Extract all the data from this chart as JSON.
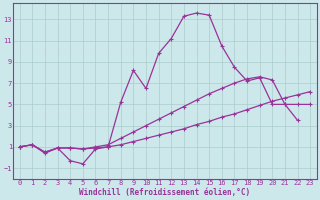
{
  "xlabel": "Windchill (Refroidissement éolien,°C)",
  "background_color": "#cce8eb",
  "line_color": "#993399",
  "xlim": [
    -0.5,
    23.5
  ],
  "ylim": [
    -2,
    14.5
  ],
  "xticks": [
    0,
    1,
    2,
    3,
    4,
    5,
    6,
    7,
    8,
    9,
    10,
    11,
    12,
    13,
    14,
    15,
    16,
    17,
    18,
    19,
    20,
    21,
    22,
    23
  ],
  "yticks": [
    -1,
    1,
    3,
    5,
    7,
    9,
    11,
    13
  ],
  "line1_x": [
    0,
    1,
    2,
    3,
    4,
    5,
    6,
    7,
    8,
    9,
    10,
    11,
    12,
    13,
    14,
    15,
    16,
    17,
    18,
    19,
    20,
    21,
    22
  ],
  "line1_y": [
    1.0,
    1.2,
    0.4,
    0.9,
    -0.3,
    -0.6,
    0.8,
    1.0,
    5.2,
    8.2,
    6.5,
    9.8,
    11.2,
    13.3,
    13.6,
    13.4,
    10.5,
    8.5,
    7.2,
    7.5,
    5.0,
    5.0,
    3.5
  ],
  "line2_x": [
    0,
    1,
    2,
    3,
    4,
    5,
    6,
    7,
    8,
    9,
    10,
    11,
    12,
    13,
    14,
    15,
    16,
    17,
    18,
    19,
    20,
    21,
    22,
    23
  ],
  "line2_y": [
    1.0,
    1.2,
    0.5,
    0.9,
    0.9,
    0.8,
    0.9,
    1.0,
    1.2,
    1.5,
    1.8,
    2.1,
    2.4,
    2.7,
    3.1,
    3.4,
    3.8,
    4.1,
    4.5,
    4.9,
    5.3,
    5.6,
    5.9,
    6.2
  ],
  "line3_x": [
    0,
    1,
    2,
    3,
    4,
    5,
    6,
    7,
    8,
    9,
    10,
    11,
    12,
    13,
    14,
    15,
    16,
    17,
    18,
    19,
    20,
    21,
    22,
    23
  ],
  "line3_y": [
    1.0,
    1.2,
    0.5,
    0.9,
    0.9,
    0.8,
    1.0,
    1.2,
    1.8,
    2.4,
    3.0,
    3.6,
    4.2,
    4.8,
    5.4,
    6.0,
    6.5,
    7.0,
    7.4,
    7.6,
    7.3,
    5.0,
    5.0,
    5.0
  ],
  "grid_color": "#aacccc",
  "font_color": "#993399",
  "tick_fontsize": 5.0,
  "xlabel_fontsize": 5.5
}
